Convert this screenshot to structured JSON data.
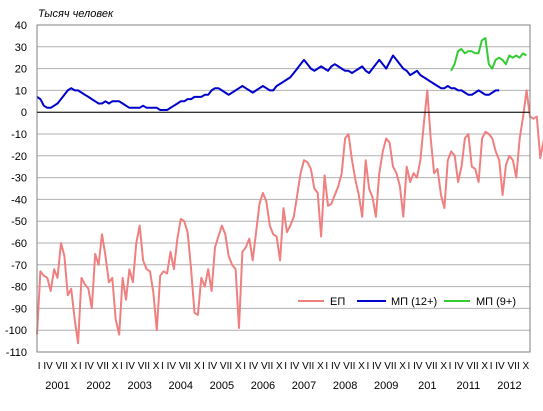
{
  "chart_data": {
    "type": "line",
    "ylabel": "Тысяч человек",
    "ylim": [
      -110,
      40
    ],
    "yticks": [
      40,
      30,
      20,
      10,
      0,
      -10,
      -20,
      -30,
      -40,
      -50,
      -60,
      -70,
      -80,
      -90,
      -100,
      -110
    ],
    "xlim": [
      2001.0,
      2013.0
    ],
    "grid": true,
    "zero_line": true,
    "month_tick_label": "I IV VII X",
    "year_labels": [
      {
        "x": 2001.5,
        "label": "2001"
      },
      {
        "x": 2002.5,
        "label": "2002"
      },
      {
        "x": 2003.5,
        "label": "2003"
      },
      {
        "x": 2004.5,
        "label": "2004"
      },
      {
        "x": 2005.5,
        "label": "2005"
      },
      {
        "x": 2006.5,
        "label": "2006"
      },
      {
        "x": 2007.5,
        "label": "2007"
      },
      {
        "x": 2008.5,
        "label": "2008"
      },
      {
        "x": 2009.5,
        "label": "2009"
      },
      {
        "x": 2010.5,
        "label": "201"
      },
      {
        "x": 2011.5,
        "label": "2011"
      },
      {
        "x": 2012.5,
        "label": "2012"
      }
    ],
    "legend": {
      "position": "bottom-right"
    },
    "series": [
      {
        "name": "ЕП",
        "color": "#f08080",
        "start": 2001.0,
        "step": 0.08333,
        "values": [
          -102,
          -73,
          -75,
          -76,
          -82,
          -72,
          -76,
          -60,
          -66,
          -84,
          -81,
          -95,
          -106,
          -76,
          -79,
          -81,
          -90,
          -65,
          -70,
          -56,
          -66,
          -78,
          -76,
          -95,
          -102,
          -76,
          -86,
          -72,
          -78,
          -60,
          -52,
          -68,
          -72,
          -73,
          -83,
          -100,
          -75,
          -73,
          -74,
          -64,
          -72,
          -58,
          -49,
          -50,
          -55,
          -72,
          -92,
          -93,
          -76,
          -80,
          -72,
          -82,
          -62,
          -57,
          -52,
          -56,
          -66,
          -70,
          -72,
          -99,
          -64,
          -62,
          -58,
          -68,
          -55,
          -42,
          -37,
          -41,
          -52,
          -56,
          -57,
          -68,
          -44,
          -55,
          -52,
          -48,
          -38,
          -28,
          -22,
          -23,
          -26,
          -35,
          -37,
          -57,
          -29,
          -43,
          -42,
          -38,
          -34,
          -28,
          -12,
          -10,
          -22,
          -31,
          -38,
          -48,
          -22,
          -35,
          -39,
          -48,
          -28,
          -18,
          -12,
          -14,
          -25,
          -28,
          -34,
          -48,
          -25,
          -32,
          -28,
          -30,
          -22,
          -5,
          10,
          -12,
          -28,
          -26,
          -38,
          -44,
          -22,
          -18,
          -20,
          -32,
          -25,
          -12,
          -10,
          -25,
          -26,
          -32,
          -12,
          -9,
          -10,
          -12,
          -18,
          -22,
          -38,
          -24,
          -20,
          -22,
          -30,
          -12,
          -2,
          10,
          -2,
          -3,
          -2,
          -21,
          -13,
          -9,
          -5,
          -14,
          -11,
          -4,
          10,
          22,
          14,
          9,
          4,
          -7
        ]
      },
      {
        "name": "МП (12+)",
        "color": "#0000cc",
        "start": 2001.0,
        "step": 0.08333,
        "values": [
          7,
          6,
          3,
          2,
          2,
          3,
          4,
          6,
          8,
          10,
          11,
          10,
          10,
          9,
          8,
          7,
          6,
          5,
          4,
          4,
          5,
          4,
          5,
          5,
          5,
          4,
          3,
          2,
          2,
          2,
          2,
          3,
          2,
          2,
          2,
          2,
          1,
          1,
          1,
          2,
          3,
          4,
          5,
          5,
          6,
          6,
          7,
          7,
          7,
          8,
          8,
          10,
          11,
          11,
          10,
          9,
          8,
          9,
          10,
          11,
          12,
          11,
          10,
          9,
          10,
          11,
          12,
          11,
          10,
          10,
          12,
          13,
          14,
          15,
          16,
          18,
          20,
          22,
          24,
          22,
          20,
          19,
          20,
          21,
          20,
          19,
          21,
          22,
          21,
          20,
          19,
          19,
          18,
          19,
          20,
          21,
          19,
          18,
          20,
          22,
          24,
          22,
          20,
          23,
          26,
          24,
          22,
          20,
          19,
          17,
          18,
          19,
          17,
          16,
          15,
          14,
          13,
          12,
          11,
          11,
          12,
          11,
          11,
          10,
          10,
          9,
          8,
          8,
          9,
          10,
          9,
          8,
          8,
          9,
          10,
          10
        ]
      },
      {
        "name": "МП (9+)",
        "color": "#33cc33",
        "start": 2011.08,
        "step": 0.08333,
        "values": [
          19,
          22,
          28,
          29,
          27,
          28,
          28,
          27,
          27,
          33,
          34,
          22,
          20,
          24,
          25,
          24,
          22,
          26,
          25,
          26,
          25,
          27,
          26
        ]
      }
    ]
  }
}
